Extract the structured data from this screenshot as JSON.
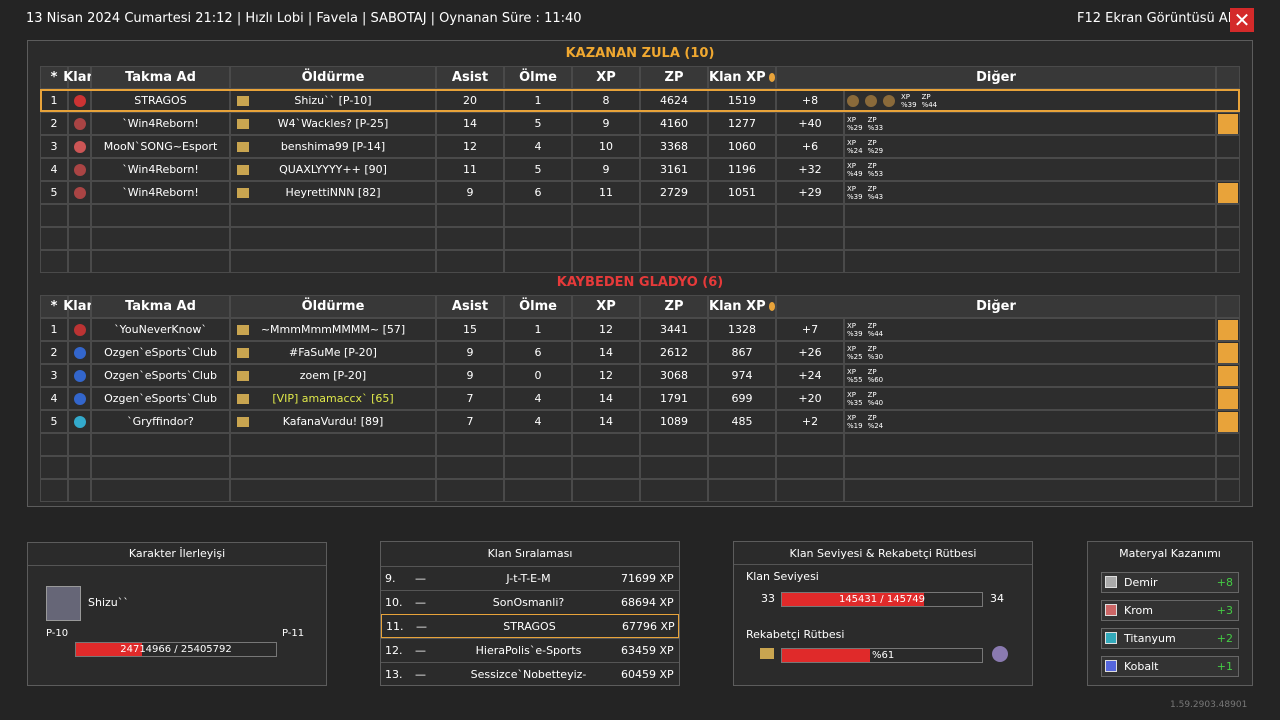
{
  "header": {
    "title": "13 Nisan 2024 Cumartesi 21:12 | Hızlı Lobi | Favela | SABOTAJ | Oynanan Süre : 11:40",
    "screenshot": "F12 Ekran Görüntüsü Al"
  },
  "columns": [
    "*",
    "Klan",
    "Takma Ad",
    "Öldürme",
    "Asist",
    "Ölme",
    "XP",
    "ZP",
    "Klan XP",
    "Diğer"
  ],
  "teams": [
    {
      "title": "KAZANAN ZULA (10)",
      "rows": [
        [
          1,
          "STRAGOS",
          "Shizu`` [P-10]",
          20,
          1,
          8,
          4624,
          1519,
          "+8",
          [
            [
              "XP",
              "%39"
            ],
            [
              "ZP",
              "%44"
            ]
          ]
        ],
        [
          2,
          "`Win4Reborn!",
          "W4`Wackles? [P-25]",
          14,
          5,
          9,
          4160,
          1277,
          "+40",
          [
            [
              "XP",
              "%29"
            ],
            [
              "ZP",
              "%33"
            ]
          ]
        ],
        [
          3,
          "MooN`SONG~Esport",
          "benshima99 [P-14]",
          12,
          4,
          10,
          3368,
          1060,
          "+6",
          [
            [
              "XP",
              "%24"
            ],
            [
              "ZP",
              "%29"
            ]
          ]
        ],
        [
          4,
          "`Win4Reborn!",
          "QUAXLYYYY++ [90]",
          11,
          5,
          9,
          3161,
          1196,
          "+32",
          [
            [
              "XP",
              "%49"
            ],
            [
              "ZP",
              "%53"
            ]
          ]
        ],
        [
          5,
          "`Win4Reborn!",
          "HeyrettiNNN [82]",
          9,
          6,
          11,
          2729,
          1051,
          "+29",
          [
            [
              "XP",
              "%39"
            ],
            [
              "ZP",
              "%43"
            ]
          ]
        ]
      ]
    },
    {
      "title": "KAYBEDEN GLADYO (6)",
      "rows": [
        [
          1,
          "`YouNeverKnow`",
          "~MmmMmmMMMM~ [57]",
          15,
          1,
          12,
          3441,
          1328,
          "+7",
          [
            [
              "XP",
              "%39"
            ],
            [
              "ZP",
              "%44"
            ]
          ]
        ],
        [
          2,
          "Ozgen`eSports`Club",
          "#FaSuMe [P-20]",
          9,
          6,
          14,
          2612,
          867,
          "+26",
          [
            [
              "XP",
              "%25"
            ],
            [
              "ZP",
              "%30"
            ]
          ]
        ],
        [
          3,
          "Ozgen`eSports`Club",
          "zoem [P-20]",
          9,
          0,
          12,
          3068,
          974,
          "+24",
          [
            [
              "XP",
              "%55"
            ],
            [
              "ZP",
              "%60"
            ]
          ]
        ],
        [
          4,
          "Ozgen`eSports`Club",
          "[VIP] amamaccx` [65]",
          7,
          4,
          14,
          1791,
          699,
          "+20",
          [
            [
              "XP",
              "%35"
            ],
            [
              "ZP",
              "%40"
            ]
          ]
        ],
        [
          5,
          "`Gryffindor?",
          "KafanaVurdu! [89]",
          7,
          4,
          14,
          1089,
          485,
          "+2",
          [
            [
              "XP",
              "%19"
            ],
            [
              "ZP",
              "%24"
            ]
          ]
        ]
      ]
    }
  ],
  "character": {
    "title": "Karakter İlerleyişi",
    "name": "Shizu``",
    "level": "P-10",
    "next_level": "P-11",
    "progress": "24714966 / 25405792"
  },
  "clan_ranking": {
    "title": "Klan Sıralaması",
    "rows": [
      [
        "9.",
        "—",
        "J-t-T-E-M",
        "71699 XP"
      ],
      [
        "10.",
        "—",
        "SonOsmanli?",
        "68694 XP"
      ],
      [
        "11.",
        "—",
        "STRAGOS",
        "67796 XP"
      ],
      [
        "12.",
        "—",
        "HieraPolis`e-Sports",
        "63459 XP"
      ],
      [
        "13.",
        "—",
        "Sessizce`Nobetteyiz-",
        "60459 XP"
      ]
    ]
  },
  "clan_level": {
    "title": "Klan Seviyesi & Rekabetçi Rütbesi",
    "level_label": "Klan Seviyesi",
    "level": 33,
    "progress": "145431 / 145749",
    "next_level": 34,
    "rank_label": "Rekabetçi Rütbesi",
    "rank_progress": "%61"
  },
  "materials": {
    "title": "Materyal Kazanımı",
    "rows": [
      [
        "Demir",
        "+8"
      ],
      [
        "Krom",
        "+3"
      ],
      [
        "Titanyum",
        "+2"
      ],
      [
        "Kobalt",
        "+1"
      ]
    ]
  },
  "version": "1.59.2903.48901"
}
